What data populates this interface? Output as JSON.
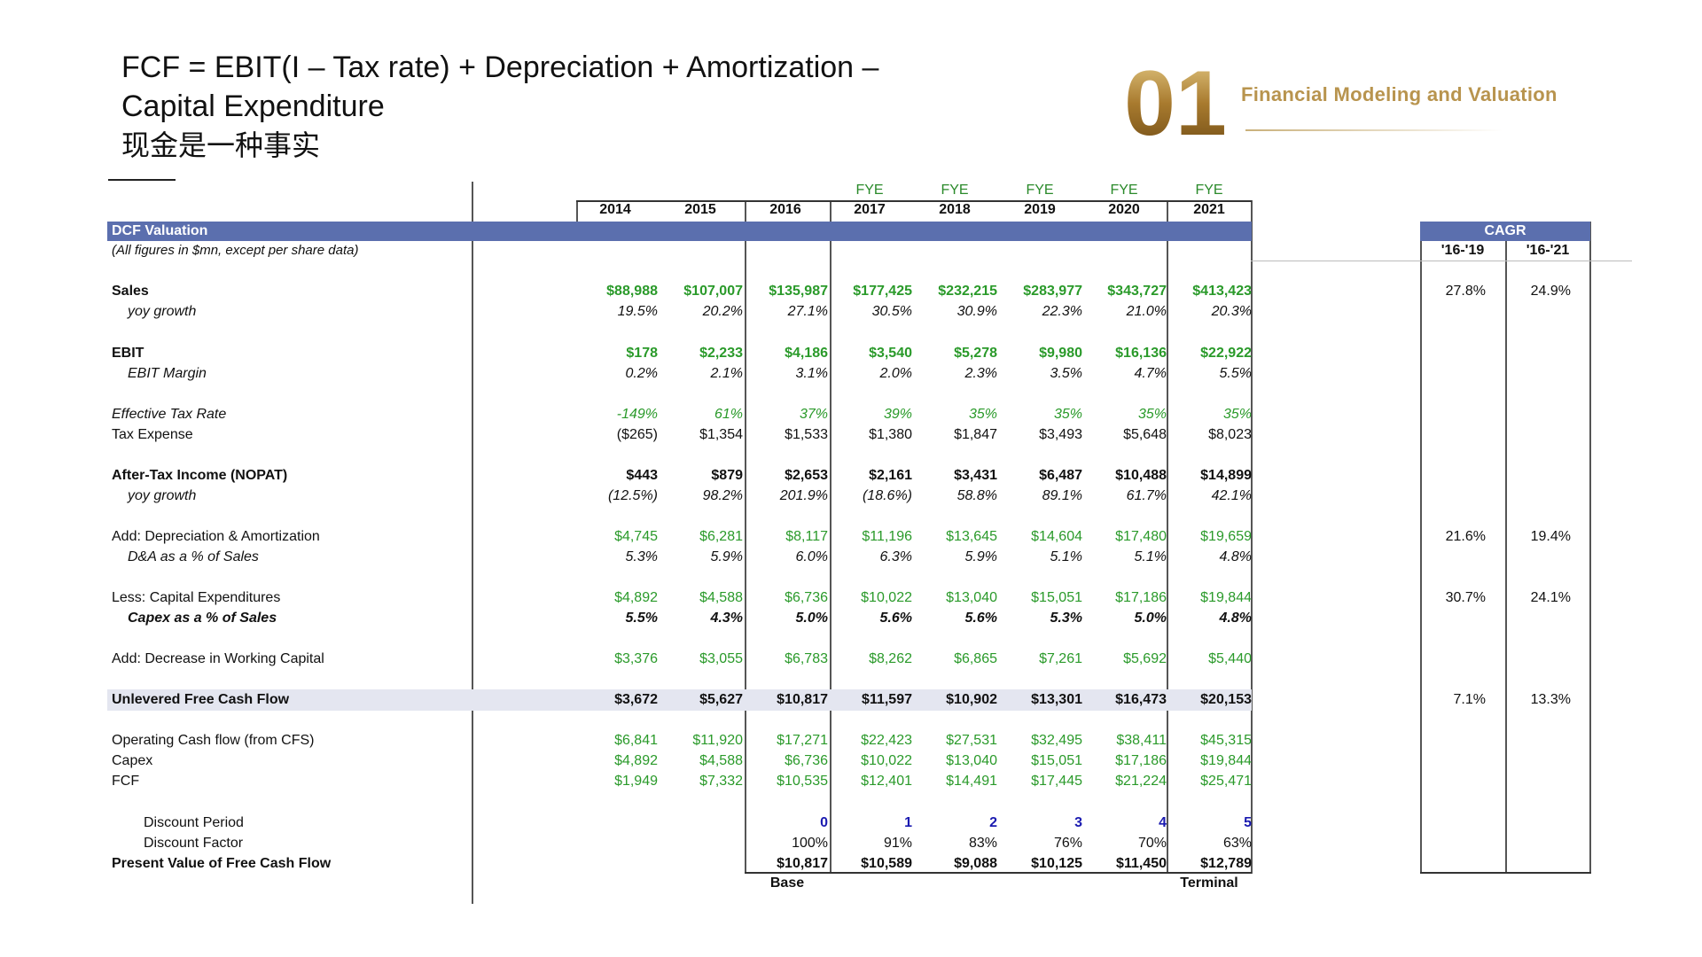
{
  "header": {
    "title_line1": "FCF = EBIT(I – Tax rate) + Depreciation + Amortization –",
    "title_line2": "Capital Expenditure",
    "title_line3": "现金是一种事实",
    "logo_number": "01",
    "logo_caption": "Financial Modeling and Valuation"
  },
  "table": {
    "fye_label": "FYE",
    "years": [
      "2014",
      "2015",
      "2016",
      "2017",
      "2018",
      "2019",
      "2020",
      "2021"
    ],
    "section_title": "DCF Valuation",
    "subtitle": "(All figures in $mn, except per share data)",
    "cagr_title": "CAGR",
    "cagr_periods": [
      "'16-'19",
      "'16-'21"
    ],
    "rows": [
      {
        "label": "Sales",
        "style": "b",
        "color": "green",
        "bold": true,
        "values": [
          "$88,988",
          "$107,007",
          "$135,987",
          "$177,425",
          "$232,215",
          "$283,977",
          "$343,727",
          "$413,423"
        ],
        "cagr": [
          "27.8%",
          "24.9%"
        ]
      },
      {
        "label": "yoy growth",
        "style": "i",
        "indent": true,
        "color": "black",
        "italic": true,
        "values": [
          "19.5%",
          "20.2%",
          "27.1%",
          "30.5%",
          "30.9%",
          "22.3%",
          "21.0%",
          "20.3%"
        ]
      },
      {
        "label": "EBIT",
        "style": "b",
        "color": "green",
        "bold": true,
        "values": [
          "$178",
          "$2,233",
          "$4,186",
          "$3,540",
          "$5,278",
          "$9,980",
          "$16,136",
          "$22,922"
        ]
      },
      {
        "label": "EBIT Margin",
        "style": "i",
        "indent": true,
        "color": "black",
        "italic": true,
        "values": [
          "0.2%",
          "2.1%",
          "3.1%",
          "2.0%",
          "2.3%",
          "3.5%",
          "4.7%",
          "5.5%"
        ]
      },
      {
        "label": "Effective Tax Rate",
        "style": "i",
        "color": "green",
        "italic": true,
        "values": [
          "-149%",
          "61%",
          "37%",
          "39%",
          "35%",
          "35%",
          "35%",
          "35%"
        ]
      },
      {
        "label": "Tax Expense",
        "style": "",
        "color": "black",
        "values": [
          "($265)",
          "$1,354",
          "$1,533",
          "$1,380",
          "$1,847",
          "$3,493",
          "$5,648",
          "$8,023"
        ]
      },
      {
        "label": "After-Tax Income (NOPAT)",
        "style": "b",
        "color": "black",
        "bold": true,
        "values": [
          "$443",
          "$879",
          "$2,653",
          "$2,161",
          "$3,431",
          "$6,487",
          "$10,488",
          "$14,899"
        ]
      },
      {
        "label": "yoy growth",
        "style": "i",
        "indent": true,
        "color": "black",
        "italic": true,
        "values": [
          "(12.5%)",
          "98.2%",
          "201.9%",
          "(18.6%)",
          "58.8%",
          "89.1%",
          "61.7%",
          "42.1%"
        ]
      },
      {
        "label": "Add: Depreciation & Amortization",
        "style": "",
        "color": "green",
        "values": [
          "$4,745",
          "$6,281",
          "$8,117",
          "$11,196",
          "$13,645",
          "$14,604",
          "$17,480",
          "$19,659"
        ],
        "cagr": [
          "21.6%",
          "19.4%"
        ]
      },
      {
        "label": "D&A as a % of Sales",
        "style": "i",
        "indent": true,
        "color": "black",
        "italic": true,
        "values": [
          "5.3%",
          "5.9%",
          "6.0%",
          "6.3%",
          "5.9%",
          "5.1%",
          "5.1%",
          "4.8%"
        ]
      },
      {
        "label": "Less: Capital Expenditures",
        "style": "",
        "color": "green",
        "values": [
          "$4,892",
          "$4,588",
          "$6,736",
          "$10,022",
          "$13,040",
          "$15,051",
          "$17,186",
          "$19,844"
        ],
        "cagr": [
          "30.7%",
          "24.1%"
        ]
      },
      {
        "label": "Capex as a % of Sales",
        "style": "i",
        "indent": true,
        "color": "black",
        "italic": true,
        "bold": true,
        "values": [
          "5.5%",
          "4.3%",
          "5.0%",
          "5.6%",
          "5.6%",
          "5.3%",
          "5.0%",
          "4.8%"
        ]
      },
      {
        "label": "Add: Decrease in Working Capital",
        "style": "",
        "color": "green",
        "values": [
          "$3,376",
          "$3,055",
          "$6,783",
          "$8,262",
          "$6,865",
          "$7,261",
          "$5,692",
          "$5,440"
        ]
      },
      {
        "label": "Unlevered Free Cash Flow",
        "style": "b",
        "color": "black",
        "bold": true,
        "highlight": true,
        "values": [
          "$3,672",
          "$5,627",
          "$10,817",
          "$11,597",
          "$10,902",
          "$13,301",
          "$16,473",
          "$20,153"
        ],
        "cagr": [
          "7.1%",
          "13.3%"
        ]
      },
      {
        "label": "Operating Cash flow (from CFS)",
        "style": "",
        "color": "green",
        "values": [
          "$6,841",
          "$11,920",
          "$17,271",
          "$22,423",
          "$27,531",
          "$32,495",
          "$38,411",
          "$45,315"
        ]
      },
      {
        "label": "Capex",
        "style": "",
        "color": "green",
        "values": [
          "$4,892",
          "$4,588",
          "$6,736",
          "$10,022",
          "$13,040",
          "$15,051",
          "$17,186",
          "$19,844"
        ]
      },
      {
        "label": "FCF",
        "style": "",
        "color": "green",
        "values": [
          "$1,949",
          "$7,332",
          "$10,535",
          "$12,401",
          "$14,491",
          "$17,445",
          "$21,224",
          "$25,471"
        ]
      },
      {
        "label": "Discount Period",
        "style": "",
        "indent2": true,
        "color": "blue",
        "values": [
          "",
          "",
          "0",
          "1",
          "2",
          "3",
          "4",
          "5"
        ]
      },
      {
        "label": "Discount Factor",
        "style": "",
        "indent2": true,
        "color": "black",
        "values": [
          "",
          "",
          "100%",
          "91%",
          "83%",
          "76%",
          "70%",
          "63%"
        ]
      },
      {
        "label": "Present Value of Free Cash Flow",
        "style": "b",
        "color": "black",
        "bold": true,
        "values": [
          "",
          "",
          "$10,817",
          "$10,589",
          "$9,088",
          "$10,125",
          "$11,450",
          "$12,789"
        ]
      }
    ],
    "footer_base": "Base",
    "footer_terminal": "Terminal"
  }
}
